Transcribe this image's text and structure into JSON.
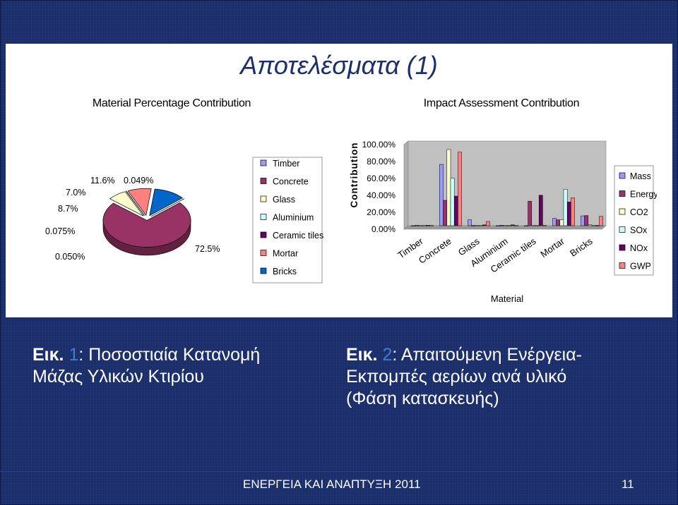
{
  "slide": {
    "title": "Αποτελέσματα (1)",
    "footer_text": "ΕΝΕΡΓΕΙΑ ΚΑΙ ΑΝΑΠΤΥΞΗ 2011",
    "page_number": "11"
  },
  "captions": {
    "left_prefix": "Εικ.",
    "left_number": "1",
    "left_text": ": Ποσοστιαία Κατανομή",
    "left_line2": "Μάζας Υλικών Κτιρίου",
    "right_prefix": "Εικ.",
    "right_number": "2",
    "right_text": ": Απαιτούμενη Ενέργεια-",
    "right_line2": "Εκπομπές αερίων ανά υλικό",
    "right_line3": "(Φάση κατασκευής)"
  },
  "colors": {
    "background": "#1c2f6d",
    "title": "#1c2f6d",
    "caption_number": "#3a7fd0"
  },
  "chart_data": [
    {
      "type": "pie",
      "title": "Material Percentage Contribution",
      "categories": [
        "Timber",
        "Concrete",
        "Glass",
        "Aluminium",
        "Ceramic tiles",
        "Mortar",
        "Bricks"
      ],
      "values": [
        0.049,
        72.5,
        7.0,
        0.075,
        0.05,
        8.7,
        11.6
      ],
      "data_labels": [
        "0.049%",
        "72.5%",
        "7.0%",
        "0.075%",
        "0.050%",
        "8.7%",
        "11.6%"
      ],
      "colors": [
        "#9a9af0",
        "#993366",
        "#ffffcc",
        "#ccffff",
        "#660066",
        "#ff8080",
        "#0066cc"
      ],
      "legend": "right",
      "style": "3d"
    },
    {
      "type": "bar",
      "title": "Impact Assessment Contribution",
      "xlabel": "Material",
      "ylabel": "Contribution",
      "categories": [
        "Timber",
        "Concrete",
        "Glass",
        "Aluminium",
        "Ceramic tiles",
        "Mortar",
        "Bricks"
      ],
      "ylim": [
        0,
        100
      ],
      "yticks": [
        "0.00%",
        "20.00%",
        "40.00%",
        "60.00%",
        "80.00%",
        "100.00%"
      ],
      "series": [
        {
          "name": "Mass",
          "color": "#9999ff",
          "values": [
            0.05,
            72.5,
            7.0,
            0.08,
            0.05,
            8.7,
            11.6
          ]
        },
        {
          "name": "Energy",
          "color": "#993366",
          "values": [
            0.5,
            30.0,
            0.3,
            0.5,
            29.0,
            7.0,
            12.0
          ]
        },
        {
          "name": "CO2",
          "color": "#ffffcc",
          "values": [
            0.3,
            90.0,
            0.5,
            0.3,
            0.5,
            7.0,
            1.0
          ]
        },
        {
          "name": "SOx",
          "color": "#ccffff",
          "values": [
            0.3,
            56.0,
            0.2,
            0.3,
            0.5,
            43.0,
            0.3
          ]
        },
        {
          "name": "NOx",
          "color": "#660066",
          "values": [
            0.5,
            35.0,
            1.0,
            1.0,
            36.0,
            28.0,
            0.3
          ]
        },
        {
          "name": "GWP",
          "color": "#ff8080",
          "values": [
            0.3,
            87.0,
            5.0,
            0.3,
            0.5,
            33.0,
            11.0
          ]
        }
      ],
      "legend": "right",
      "grid": false
    }
  ]
}
